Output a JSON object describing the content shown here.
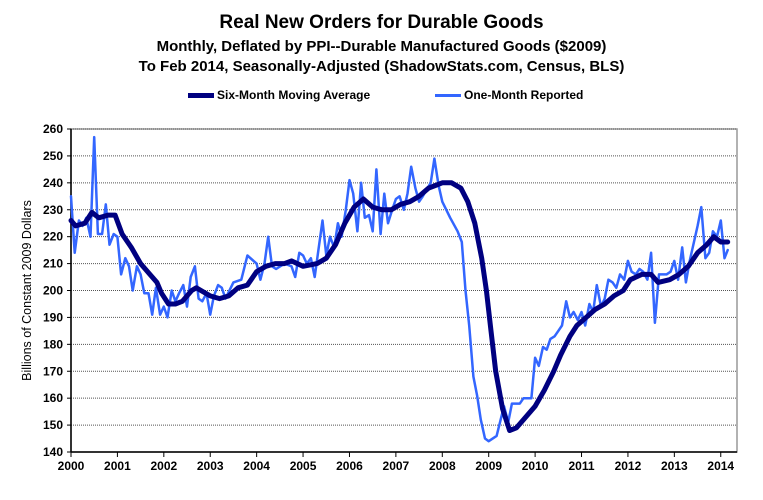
{
  "chart_data": {
    "type": "line",
    "title": "Real New Orders for Durable Goods",
    "subtitle1": "Monthly, Deflated by  PPI--Durable Manufactured Goods ($2009)",
    "subtitle2": "To Feb 2014, Seasonally-Adjusted  (ShadowStats.com, Census, BLS)",
    "xlabel": "",
    "ylabel": "Billions  of Constant 2009 Dollars",
    "xlim": [
      2000,
      2014.35
    ],
    "ylim": [
      140,
      260
    ],
    "x_ticks": [
      "2000",
      "2001",
      "2002",
      "2003",
      "2004",
      "2005",
      "2006",
      "2007",
      "2008",
      "2009",
      "2010",
      "2011",
      "2012",
      "2013",
      "2014"
    ],
    "y_ticks": [
      "140",
      "150",
      "160",
      "170",
      "180",
      "190",
      "200",
      "210",
      "220",
      "230",
      "240",
      "250",
      "260"
    ],
    "grid": true,
    "legend_position": "top-center",
    "series": [
      {
        "name": "Six-Month Moving Average",
        "color": "#000080",
        "points": [
          [
            2000.0,
            226
          ],
          [
            2000.1,
            224
          ],
          [
            2000.3,
            225
          ],
          [
            2000.45,
            229
          ],
          [
            2000.6,
            227
          ],
          [
            2000.8,
            228
          ],
          [
            2000.95,
            228
          ],
          [
            2001.1,
            221
          ],
          [
            2001.3,
            216
          ],
          [
            2001.5,
            210
          ],
          [
            2001.7,
            206
          ],
          [
            2001.85,
            203
          ],
          [
            2001.95,
            199
          ],
          [
            2002.1,
            195
          ],
          [
            2002.25,
            195
          ],
          [
            2002.4,
            196
          ],
          [
            2002.6,
            200
          ],
          [
            2002.7,
            201
          ],
          [
            2003.0,
            198
          ],
          [
            2003.2,
            197
          ],
          [
            2003.4,
            198
          ],
          [
            2003.6,
            201
          ],
          [
            2003.8,
            202
          ],
          [
            2004.0,
            207
          ],
          [
            2004.2,
            209
          ],
          [
            2004.4,
            210
          ],
          [
            2004.6,
            210
          ],
          [
            2004.75,
            211
          ],
          [
            2005.0,
            209
          ],
          [
            2005.3,
            210
          ],
          [
            2005.5,
            212
          ],
          [
            2005.7,
            217
          ],
          [
            2005.9,
            225
          ],
          [
            2006.1,
            231
          ],
          [
            2006.3,
            234
          ],
          [
            2006.5,
            231
          ],
          [
            2006.7,
            230
          ],
          [
            2006.9,
            230
          ],
          [
            2007.1,
            232
          ],
          [
            2007.3,
            233
          ],
          [
            2007.5,
            235
          ],
          [
            2007.7,
            238
          ],
          [
            2007.85,
            239
          ],
          [
            2008.0,
            240
          ],
          [
            2008.2,
            240
          ],
          [
            2008.4,
            238
          ],
          [
            2008.55,
            233
          ],
          [
            2008.7,
            225
          ],
          [
            2008.85,
            212
          ],
          [
            2008.95,
            200
          ],
          [
            2009.05,
            185
          ],
          [
            2009.15,
            170
          ],
          [
            2009.3,
            156
          ],
          [
            2009.45,
            148
          ],
          [
            2009.6,
            149
          ],
          [
            2009.8,
            153
          ],
          [
            2010.0,
            157
          ],
          [
            2010.2,
            163
          ],
          [
            2010.4,
            170
          ],
          [
            2010.55,
            176
          ],
          [
            2010.75,
            183
          ],
          [
            2010.9,
            187
          ],
          [
            2011.1,
            190
          ],
          [
            2011.3,
            193
          ],
          [
            2011.5,
            195
          ],
          [
            2011.7,
            198
          ],
          [
            2011.9,
            200
          ],
          [
            2012.05,
            204
          ],
          [
            2012.3,
            206
          ],
          [
            2012.5,
            206
          ],
          [
            2012.65,
            203
          ],
          [
            2012.9,
            204
          ],
          [
            2013.1,
            206
          ],
          [
            2013.3,
            209
          ],
          [
            2013.5,
            214
          ],
          [
            2013.7,
            217
          ],
          [
            2013.85,
            220
          ],
          [
            2014.0,
            218
          ],
          [
            2014.15,
            218
          ]
        ]
      },
      {
        "name": "One-Month Reported",
        "color": "#3366FF",
        "points": [
          [
            2000.0,
            235
          ],
          [
            2000.08,
            214
          ],
          [
            2000.17,
            226
          ],
          [
            2000.25,
            224
          ],
          [
            2000.33,
            227
          ],
          [
            2000.42,
            220
          ],
          [
            2000.5,
            257
          ],
          [
            2000.58,
            221
          ],
          [
            2000.67,
            221
          ],
          [
            2000.75,
            232
          ],
          [
            2000.83,
            217
          ],
          [
            2000.92,
            221
          ],
          [
            2001.0,
            220
          ],
          [
            2001.08,
            206
          ],
          [
            2001.17,
            212
          ],
          [
            2001.25,
            209
          ],
          [
            2001.33,
            200
          ],
          [
            2001.42,
            209
          ],
          [
            2001.5,
            206
          ],
          [
            2001.58,
            199
          ],
          [
            2001.67,
            199
          ],
          [
            2001.75,
            191
          ],
          [
            2001.83,
            201
          ],
          [
            2001.92,
            191
          ],
          [
            2002.0,
            194
          ],
          [
            2002.08,
            190
          ],
          [
            2002.17,
            200
          ],
          [
            2002.25,
            196
          ],
          [
            2002.33,
            199
          ],
          [
            2002.42,
            202
          ],
          [
            2002.5,
            194
          ],
          [
            2002.58,
            205
          ],
          [
            2002.67,
            209
          ],
          [
            2002.75,
            197
          ],
          [
            2002.83,
            196
          ],
          [
            2002.92,
            199
          ],
          [
            2003.0,
            191
          ],
          [
            2003.08,
            198
          ],
          [
            2003.17,
            202
          ],
          [
            2003.25,
            201
          ],
          [
            2003.33,
            197
          ],
          [
            2003.5,
            203
          ],
          [
            2003.67,
            204
          ],
          [
            2003.8,
            213
          ],
          [
            2004.0,
            210
          ],
          [
            2004.08,
            204
          ],
          [
            2004.17,
            210
          ],
          [
            2004.25,
            220
          ],
          [
            2004.33,
            209
          ],
          [
            2004.42,
            208
          ],
          [
            2004.6,
            210
          ],
          [
            2004.75,
            209
          ],
          [
            2004.83,
            205
          ],
          [
            2004.92,
            214
          ],
          [
            2005.0,
            213
          ],
          [
            2005.08,
            210
          ],
          [
            2005.17,
            212
          ],
          [
            2005.25,
            205
          ],
          [
            2005.33,
            215
          ],
          [
            2005.42,
            226
          ],
          [
            2005.5,
            213
          ],
          [
            2005.58,
            220
          ],
          [
            2005.67,
            216
          ],
          [
            2005.75,
            225
          ],
          [
            2005.83,
            220
          ],
          [
            2005.92,
            230
          ],
          [
            2006.0,
            241
          ],
          [
            2006.08,
            236
          ],
          [
            2006.17,
            222
          ],
          [
            2006.25,
            240
          ],
          [
            2006.33,
            227
          ],
          [
            2006.42,
            228
          ],
          [
            2006.5,
            222
          ],
          [
            2006.58,
            245
          ],
          [
            2006.67,
            221
          ],
          [
            2006.75,
            236
          ],
          [
            2006.83,
            225
          ],
          [
            2006.92,
            230
          ],
          [
            2007.0,
            234
          ],
          [
            2007.08,
            235
          ],
          [
            2007.17,
            230
          ],
          [
            2007.25,
            236
          ],
          [
            2007.33,
            246
          ],
          [
            2007.42,
            238
          ],
          [
            2007.5,
            233
          ],
          [
            2007.58,
            235
          ],
          [
            2007.75,
            240
          ],
          [
            2007.83,
            249
          ],
          [
            2007.92,
            239
          ],
          [
            2008.0,
            233
          ],
          [
            2008.17,
            227
          ],
          [
            2008.33,
            222
          ],
          [
            2008.42,
            218
          ],
          [
            2008.5,
            200
          ],
          [
            2008.58,
            187
          ],
          [
            2008.67,
            168
          ],
          [
            2008.75,
            161
          ],
          [
            2008.83,
            152
          ],
          [
            2008.92,
            145
          ],
          [
            2009.0,
            144
          ],
          [
            2009.17,
            146
          ],
          [
            2009.33,
            157
          ],
          [
            2009.42,
            151
          ],
          [
            2009.5,
            158
          ],
          [
            2009.67,
            158
          ],
          [
            2009.75,
            160
          ],
          [
            2009.92,
            160
          ],
          [
            2010.0,
            175
          ],
          [
            2010.08,
            172
          ],
          [
            2010.17,
            179
          ],
          [
            2010.25,
            178
          ],
          [
            2010.33,
            182
          ],
          [
            2010.42,
            183
          ],
          [
            2010.5,
            185
          ],
          [
            2010.58,
            187
          ],
          [
            2010.67,
            196
          ],
          [
            2010.75,
            190
          ],
          [
            2010.83,
            192
          ],
          [
            2010.92,
            189
          ],
          [
            2011.0,
            192
          ],
          [
            2011.08,
            187
          ],
          [
            2011.17,
            195
          ],
          [
            2011.25,
            192
          ],
          [
            2011.33,
            202
          ],
          [
            2011.42,
            194
          ],
          [
            2011.5,
            197
          ],
          [
            2011.58,
            204
          ],
          [
            2011.67,
            203
          ],
          [
            2011.75,
            201
          ],
          [
            2011.83,
            206
          ],
          [
            2011.92,
            204
          ],
          [
            2012.0,
            211
          ],
          [
            2012.08,
            207
          ],
          [
            2012.17,
            206
          ],
          [
            2012.25,
            208
          ],
          [
            2012.33,
            207
          ],
          [
            2012.42,
            204
          ],
          [
            2012.5,
            214
          ],
          [
            2012.58,
            188
          ],
          [
            2012.67,
            206
          ],
          [
            2012.83,
            206
          ],
          [
            2012.92,
            207
          ],
          [
            2013.0,
            211
          ],
          [
            2013.08,
            204
          ],
          [
            2013.17,
            216
          ],
          [
            2013.25,
            203
          ],
          [
            2013.33,
            211
          ],
          [
            2013.5,
            224
          ],
          [
            2013.58,
            231
          ],
          [
            2013.67,
            212
          ],
          [
            2013.75,
            214
          ],
          [
            2013.83,
            222
          ],
          [
            2013.92,
            220
          ],
          [
            2014.0,
            226
          ],
          [
            2014.08,
            212
          ],
          [
            2014.15,
            215
          ]
        ]
      }
    ]
  }
}
